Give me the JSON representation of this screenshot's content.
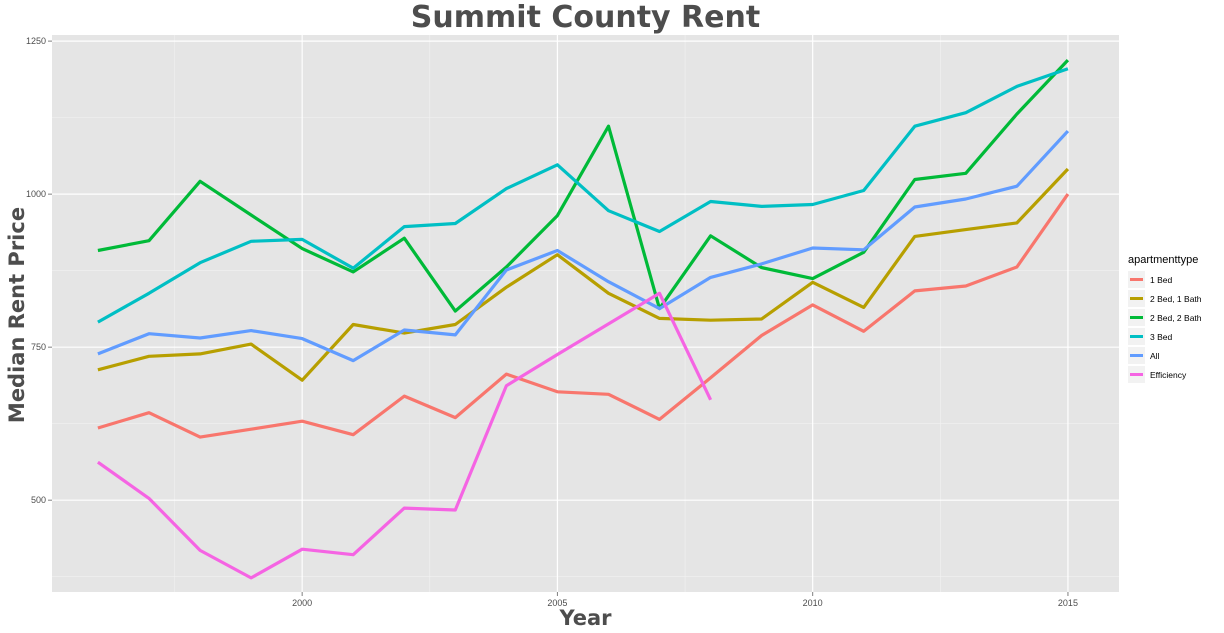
{
  "chart_data": {
    "type": "line",
    "title": "Summit County Rent",
    "xlabel": "Year",
    "ylabel": "Median Rent Price",
    "xlim": [
      1995.1,
      2016
    ],
    "ylim": [
      350,
      1260
    ],
    "x_ticks": [
      2000,
      2005,
      2010,
      2015
    ],
    "y_ticks": [
      500,
      750,
      1000,
      1250
    ],
    "grid": true,
    "legend": {
      "title": "apartmenttype",
      "placement": "right"
    },
    "series": [
      {
        "name": "1 Bed",
        "color": "#F8766D",
        "x": [
          1996,
          1997,
          1998,
          1999,
          2000,
          2001,
          2002,
          2003,
          2004,
          2005,
          2006,
          2007,
          2008,
          2009,
          2010,
          2011,
          2012,
          2013,
          2014,
          2015
        ],
        "values": [
          618,
          643,
          603,
          616,
          629,
          607,
          670,
          635,
          706,
          677,
          673,
          632,
          700,
          769,
          819,
          776,
          842,
          850,
          881,
          1000
        ]
      },
      {
        "name": "2 Bed, 1 Bath",
        "color": "#B79F00",
        "x": [
          1996,
          1997,
          1998,
          1999,
          2000,
          2001,
          2002,
          2003,
          2004,
          2005,
          2006,
          2007,
          2008,
          2009,
          2010,
          2011,
          2012,
          2013,
          2014,
          2015
        ],
        "values": [
          713,
          735,
          739,
          755,
          696,
          787,
          773,
          787,
          848,
          901,
          838,
          797,
          794,
          796,
          856,
          815,
          931,
          942,
          953,
          1041
        ]
      },
      {
        "name": "2 Bed, 2 Bath",
        "color": "#00BA38",
        "x": [
          1996,
          1997,
          1998,
          1999,
          2000,
          2001,
          2002,
          2003,
          2004,
          2005,
          2006,
          2007,
          2008,
          2009,
          2010,
          2011,
          2012,
          2013,
          2014,
          2015
        ],
        "values": [
          908,
          924,
          1021,
          966,
          911,
          873,
          928,
          809,
          881,
          965,
          1111,
          813,
          932,
          880,
          862,
          905,
          1024,
          1034,
          1131,
          1219
        ]
      },
      {
        "name": "3 Bed",
        "color": "#00BFC4",
        "x": [
          1996,
          1997,
          1998,
          1999,
          2000,
          2001,
          2002,
          2003,
          2004,
          2005,
          2006,
          2007,
          2008,
          2009,
          2010,
          2011,
          2012,
          2013,
          2014,
          2015
        ],
        "values": [
          791,
          838,
          888,
          923,
          926,
          879,
          947,
          952,
          1009,
          1048,
          973,
          939,
          988,
          980,
          983,
          1006,
          1111,
          1133,
          1176,
          1205
        ]
      },
      {
        "name": "All",
        "color": "#619CFF",
        "x": [
          1996,
          1997,
          1998,
          1999,
          2000,
          2001,
          2002,
          2003,
          2004,
          2005,
          2006,
          2007,
          2008,
          2009,
          2010,
          2011,
          2012,
          2013,
          2014,
          2015
        ],
        "values": [
          739,
          772,
          765,
          777,
          764,
          728,
          778,
          770,
          876,
          908,
          857,
          813,
          864,
          886,
          912,
          909,
          979,
          992,
          1013,
          1103
        ]
      },
      {
        "name": "Efficiency",
        "color": "#F564E3",
        "x": [
          1996,
          1997,
          1998,
          1999,
          2000,
          2001,
          2002,
          2003,
          2004,
          2005,
          2006,
          2007,
          2008
        ],
        "values": [
          562,
          503,
          418,
          373,
          420,
          411,
          487,
          484,
          687,
          738,
          788,
          838,
          664
        ]
      }
    ]
  }
}
